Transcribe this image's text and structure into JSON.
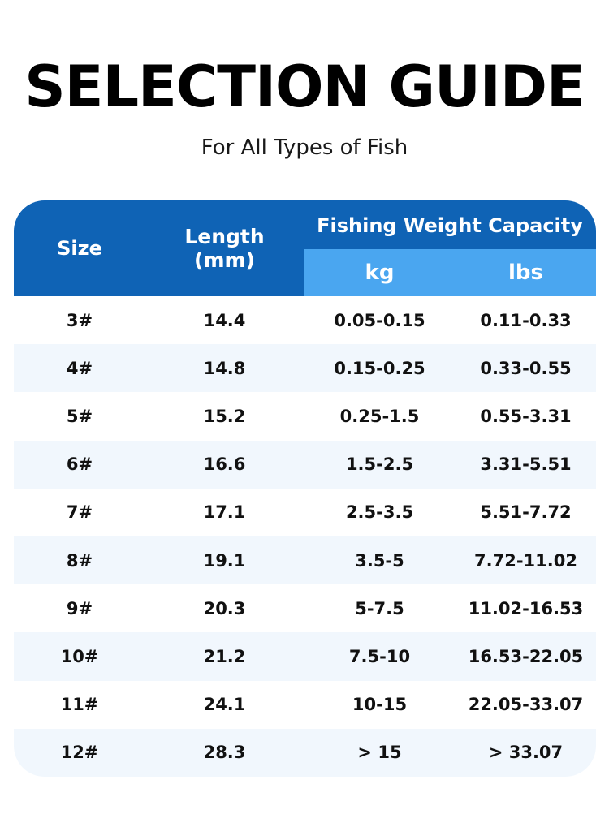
{
  "title": "SELECTION GUIDE",
  "subtitle": "For All Types of Fish",
  "table": {
    "headers": {
      "size": "Size",
      "length_line1": "Length",
      "length_line2": "(mm)",
      "capacity": "Fishing Weight Capacity",
      "kg": "kg",
      "lbs": "lbs"
    },
    "rows": [
      {
        "size": "3#",
        "length": "14.4",
        "kg": "0.05-0.15",
        "lbs": "0.11-0.33"
      },
      {
        "size": "4#",
        "length": "14.8",
        "kg": "0.15-0.25",
        "lbs": "0.33-0.55"
      },
      {
        "size": "5#",
        "length": "15.2",
        "kg": "0.25-1.5",
        "lbs": "0.55-3.31"
      },
      {
        "size": "6#",
        "length": "16.6",
        "kg": "1.5-2.5",
        "lbs": "3.31-5.51"
      },
      {
        "size": "7#",
        "length": "17.1",
        "kg": "2.5-3.5",
        "lbs": "5.51-7.72"
      },
      {
        "size": "8#",
        "length": "19.1",
        "kg": "3.5-5",
        "lbs": "7.72-11.02"
      },
      {
        "size": "9#",
        "length": "20.3",
        "kg": "5-7.5",
        "lbs": "11.02-16.53"
      },
      {
        "size": "10#",
        "length": "21.2",
        "kg": "7.5-10",
        "lbs": "16.53-22.05"
      },
      {
        "size": "11#",
        "length": "24.1",
        "kg": "10-15",
        "lbs": "22.05-33.07"
      },
      {
        "size": "12#",
        "length": "28.3",
        "kg": "> 15",
        "lbs": "> 33.07"
      }
    ]
  },
  "colors": {
    "header_dark_blue": "#0f63b5",
    "header_light_blue": "#4aa6f0",
    "row_alt": "#f1f7fd"
  }
}
